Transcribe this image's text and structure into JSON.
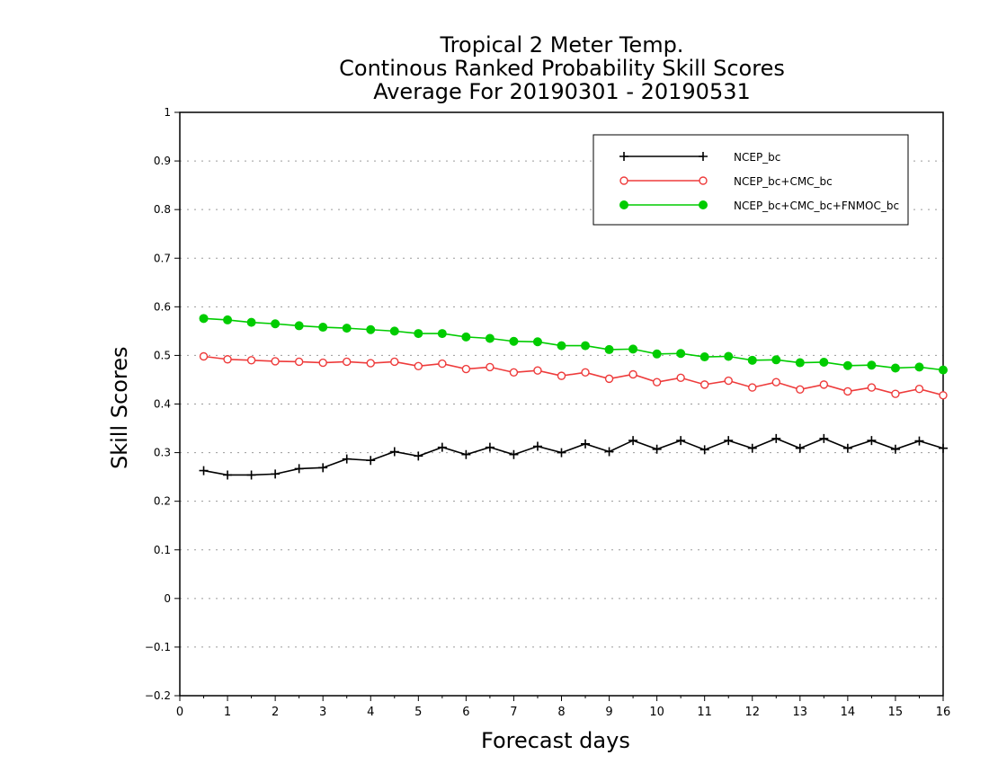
{
  "chart_data": {
    "type": "line",
    "title": [
      "Tropical 2 Meter Temp.",
      "Continous Ranked Probability Skill Scores",
      "Average For 20190301 - 20190531"
    ],
    "xlabel": "Forecast days",
    "ylabel": "Skill Scores",
    "xlim": [
      0,
      16
    ],
    "ylim": [
      -0.2,
      1
    ],
    "xticks": [
      0,
      1,
      2,
      3,
      4,
      5,
      6,
      7,
      8,
      9,
      10,
      11,
      12,
      13,
      14,
      15,
      16
    ],
    "yticks": [
      -0.2,
      -0.1,
      0,
      0.1,
      0.2,
      0.3,
      0.4,
      0.5,
      0.6,
      0.7,
      0.8,
      0.9,
      1
    ],
    "ytick_labels": [
      "−0.2",
      "−0.1",
      "0",
      "0.1",
      "0.2",
      "0.3",
      "0.4",
      "0.5",
      "0.6",
      "0.7",
      "0.8",
      "0.9",
      "1"
    ],
    "grid": true,
    "legend_position": "top-right",
    "x": [
      0.5,
      1,
      1.5,
      2,
      2.5,
      3,
      3.5,
      4,
      4.5,
      5,
      5.5,
      6,
      6.5,
      7,
      7.5,
      8,
      8.5,
      9,
      9.5,
      10,
      10.5,
      11,
      11.5,
      12,
      12.5,
      13,
      13.5,
      14,
      14.5,
      15,
      15.5,
      16
    ],
    "series": [
      {
        "name": "NCEP_bc",
        "color": "#000000",
        "marker": "plus",
        "values": [
          0.263,
          0.254,
          0.254,
          0.256,
          0.267,
          0.269,
          0.287,
          0.284,
          0.302,
          0.293,
          0.311,
          0.296,
          0.311,
          0.296,
          0.313,
          0.3,
          0.318,
          0.302,
          0.325,
          0.307,
          0.325,
          0.306,
          0.325,
          0.309,
          0.329,
          0.309,
          0.329,
          0.309,
          0.325,
          0.307,
          0.324,
          0.309
        ]
      },
      {
        "name": "NCEP_bc+CMC_bc",
        "color": "#ee3b3b",
        "marker": "open-circle",
        "values": [
          0.498,
          0.492,
          0.49,
          0.488,
          0.487,
          0.485,
          0.487,
          0.484,
          0.487,
          0.478,
          0.483,
          0.472,
          0.476,
          0.465,
          0.469,
          0.458,
          0.465,
          0.452,
          0.461,
          0.445,
          0.454,
          0.44,
          0.448,
          0.434,
          0.445,
          0.43,
          0.44,
          0.426,
          0.434,
          0.421,
          0.431,
          0.418
        ]
      },
      {
        "name": "NCEP_bc+CMC_bc+FNMOC_bc",
        "color": "#00cc00",
        "marker": "filled-circle",
        "values": [
          0.576,
          0.573,
          0.568,
          0.565,
          0.561,
          0.558,
          0.556,
          0.553,
          0.55,
          0.545,
          0.545,
          0.538,
          0.535,
          0.529,
          0.528,
          0.52,
          0.52,
          0.512,
          0.513,
          0.503,
          0.504,
          0.497,
          0.498,
          0.49,
          0.491,
          0.485,
          0.486,
          0.479,
          0.48,
          0.474,
          0.476,
          0.47
        ]
      }
    ]
  }
}
